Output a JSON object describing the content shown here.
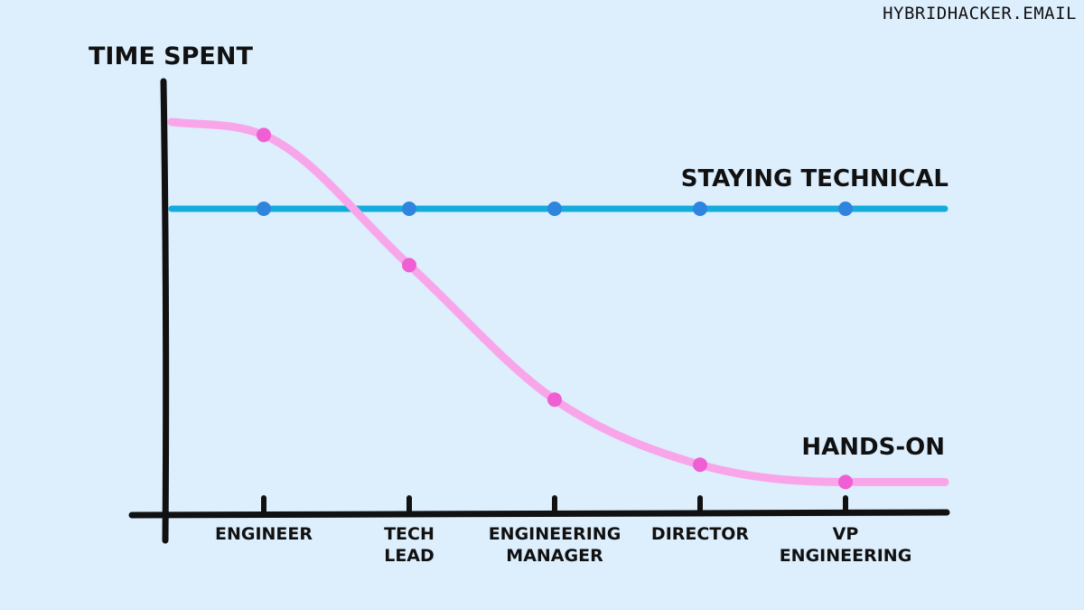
{
  "site": "HYBRIDHACKER.EMAIL",
  "chart_data": {
    "type": "line",
    "ylabel": "TIME SPENT",
    "categories": [
      [
        "ENGINEER"
      ],
      [
        "TECH",
        "LEAD"
      ],
      [
        "ENGINEERING",
        "MANAGER"
      ],
      [
        "DIRECTOR"
      ],
      [
        "VP",
        "ENGINEERING"
      ]
    ],
    "ylim": [
      0,
      100
    ],
    "series": [
      {
        "name": "STAYING TECHNICAL",
        "color": "#14acdc",
        "point_color": "#2f84dd",
        "values": [
          70,
          70,
          70,
          70,
          70
        ]
      },
      {
        "name": "HANDS-ON",
        "color": "#f9a5ea",
        "point_color": "#ef5fd3",
        "values": [
          87,
          57,
          26,
          11,
          7
        ]
      }
    ],
    "grid": false
  }
}
